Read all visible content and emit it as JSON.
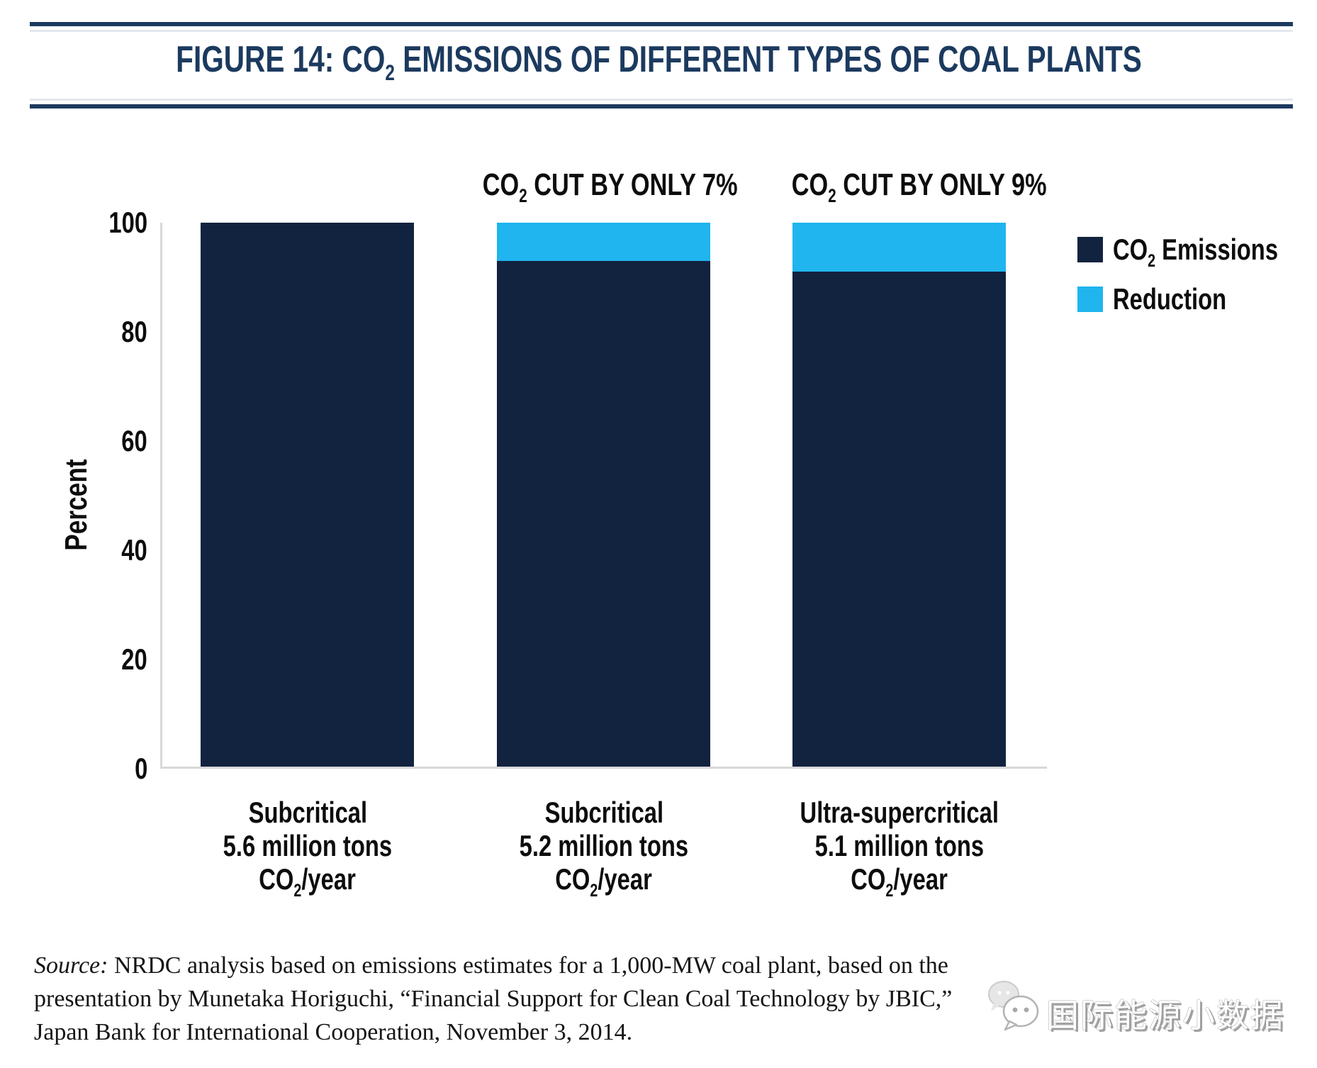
{
  "header": {
    "title_pre": "FIGURE 14: CO",
    "title_sub": "2",
    "title_post": " EMISSIONS OF DIFFERENT TYPES OF COAL PLANTS",
    "accent_color": "#1C3A5F"
  },
  "chart_data": {
    "type": "bar",
    "stacked": true,
    "title": "FIGURE 14: CO2 EMISSIONS OF DIFFERENT TYPES OF COAL PLANTS",
    "xlabel": "",
    "ylabel": "Percent",
    "ylim": [
      0,
      100
    ],
    "yticks": [
      0,
      20,
      40,
      60,
      80,
      100
    ],
    "ytick_labels_top_down": [
      "100",
      "80",
      "60",
      "40",
      "20",
      "0"
    ],
    "grid": false,
    "legend_position": "right",
    "axis_color": "#D8D8D8",
    "categories": [
      {
        "name": "Subcritical",
        "tons": "5.6 million tons",
        "unit_pre": "CO",
        "unit_sub": "2",
        "unit_post": "/year"
      },
      {
        "name": "Subcritical",
        "tons": "5.2 million tons",
        "unit_pre": "CO",
        "unit_sub": "2",
        "unit_post": "/year"
      },
      {
        "name": "Ultra-supercritical",
        "tons": "5.1 million tons",
        "unit_pre": "CO",
        "unit_sub": "2",
        "unit_post": "/year"
      }
    ],
    "series": [
      {
        "name": "CO2 Emissions",
        "label_pre": "CO",
        "label_sub": "2",
        "label_post": " Emissions",
        "color": "#12233F",
        "values": [
          100,
          93,
          91
        ]
      },
      {
        "name": "Reduction",
        "label_pre": "Reduction",
        "label_sub": "",
        "label_post": "",
        "color": "#20B5EE",
        "values": [
          0,
          7,
          9
        ]
      }
    ],
    "annotations": [
      {
        "bar_index": 1,
        "pre": "CO",
        "sub": "2",
        "post": " CUT BY ONLY 7%"
      },
      {
        "bar_index": 2,
        "pre": "CO",
        "sub": "2",
        "post": " CUT BY ONLY 9%"
      }
    ]
  },
  "footer": {
    "source_label": "Source:",
    "line1_rest": " NRDC analysis based on emissions estimates for a 1,000-MW coal plant, based on the",
    "line2": "presentation by Munetaka Horiguchi, “Financial Support for Clean Coal Technology by JBIC,”",
    "line3": "Japan Bank for International Cooperation, November 3, 2014."
  },
  "watermark": {
    "text": "国际能源小数据",
    "logo_icon": "wechat-logo-icon"
  }
}
